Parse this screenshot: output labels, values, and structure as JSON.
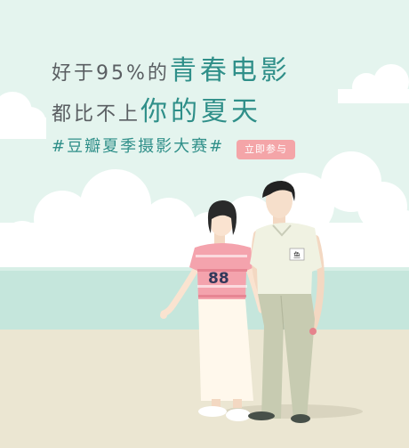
{
  "banner": {
    "headline": {
      "line1_plain": "好于95%的",
      "line1_emph": "青春电影",
      "line2_plain": "都比不上",
      "line2_emph": "你的夏天"
    },
    "hashtag": "#豆瓣夏季摄影大赛#",
    "cta_label": "立即参与",
    "boy_badge_text": "鱼",
    "girl_jersey_number": "88"
  },
  "colors": {
    "sky": "#e4f4ee",
    "sea": "#c5e6dc",
    "sand": "#ebe6d2",
    "accent_teal": "#2f8f89",
    "cta_pink": "#f4a5a8",
    "headline_gray": "#5a5e62"
  }
}
